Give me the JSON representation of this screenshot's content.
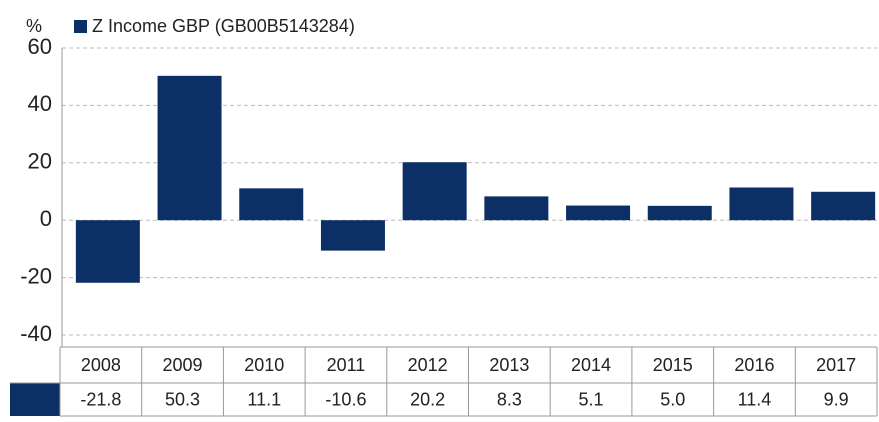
{
  "chart_data": {
    "type": "bar",
    "y_label": "%",
    "series": [
      {
        "name": "Z Income GBP (GB00B5143284)",
        "color": "#0c3066",
        "values": [
          -21.8,
          50.3,
          11.1,
          -10.6,
          20.2,
          8.3,
          5.1,
          5.0,
          11.4,
          9.9
        ],
        "value_labels": [
          "-21.8",
          "50.3",
          "11.1",
          "-10.6",
          "20.2",
          "8.3",
          "5.1",
          "5.0",
          "11.4",
          "9.9"
        ]
      }
    ],
    "categories": [
      "2008",
      "2009",
      "2010",
      "2011",
      "2012",
      "2013",
      "2014",
      "2015",
      "2016",
      "2017"
    ],
    "ylim": [
      -40,
      60
    ],
    "yticks": [
      -40,
      -20,
      0,
      20,
      40,
      60
    ],
    "grid": true
  }
}
